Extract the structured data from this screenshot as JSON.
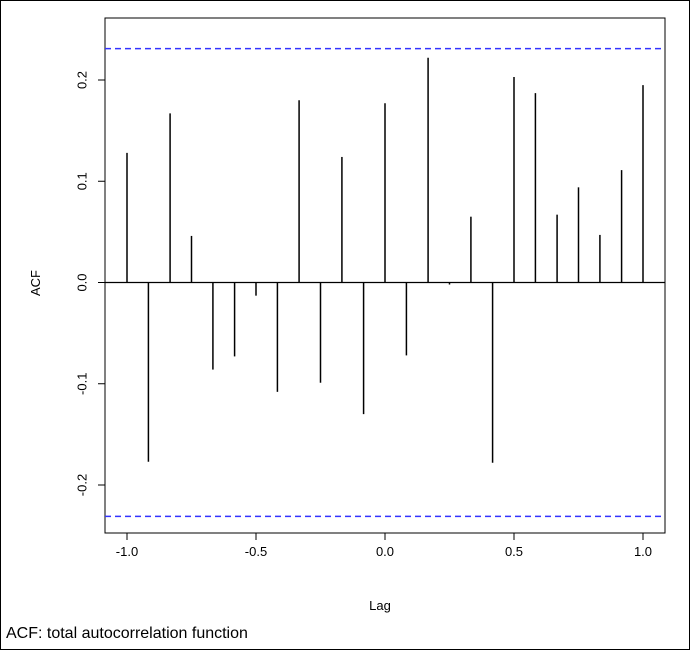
{
  "chart_data": {
    "type": "bar",
    "subtype": "acf-stem",
    "xlabel": "Lag",
    "ylabel": "ACF",
    "xlim": [
      -1.05,
      1.05
    ],
    "ylim": [
      -0.25,
      0.25
    ],
    "x_ticks": [
      -1.0,
      -0.5,
      0.0,
      0.5,
      1.0
    ],
    "x_tick_labels": [
      "-1.0",
      "-0.5",
      "0.0",
      "0.5",
      "1.0"
    ],
    "y_ticks": [
      -0.2,
      -0.1,
      0.0,
      0.1,
      0.2
    ],
    "y_tick_labels": [
      "-0.2",
      "-0.1",
      "0.0",
      "0.1",
      "0.2"
    ],
    "confidence_band": [
      -0.231,
      0.231
    ],
    "confidence_color": "#3333ff",
    "grid": false,
    "x": [
      -1.0,
      -0.917,
      -0.833,
      -0.75,
      -0.667,
      -0.583,
      -0.5,
      -0.417,
      -0.333,
      -0.25,
      -0.167,
      -0.083,
      0.0,
      0.083,
      0.167,
      0.25,
      0.333,
      0.417,
      0.5,
      0.583,
      0.667,
      0.75,
      0.833,
      0.917,
      1.0
    ],
    "values": [
      0.128,
      -0.177,
      0.167,
      0.046,
      -0.086,
      -0.073,
      -0.013,
      -0.108,
      0.18,
      -0.099,
      0.124,
      -0.13,
      0.177,
      -0.072,
      0.222,
      -0.002,
      0.065,
      -0.178,
      0.203,
      0.187,
      0.067,
      0.094,
      0.047,
      0.111,
      0.195
    ]
  },
  "caption": "ACF: total autocorrelation function"
}
